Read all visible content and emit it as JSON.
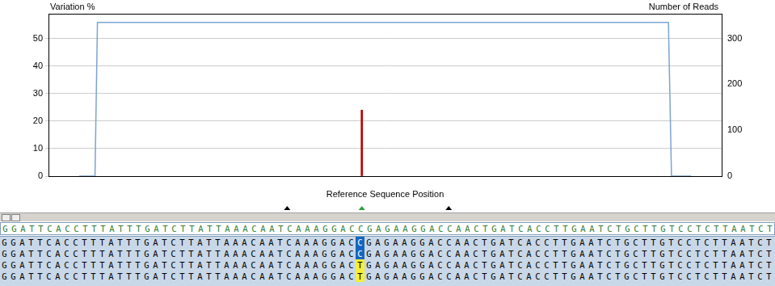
{
  "chart_data": {
    "type": "line",
    "y_label": "Variation %",
    "y2_label": "Number of Reads",
    "x_label": "Reference Sequence Position",
    "xlim": [
      0,
      100
    ],
    "ylim": [
      0,
      59
    ],
    "yticks": [
      0,
      10,
      20,
      30,
      40,
      50
    ],
    "y2lim": [
      0,
      354
    ],
    "y2ticks": [
      0,
      100,
      200,
      300
    ],
    "grid": true,
    "tick_labels": "y",
    "series": [
      {
        "type": "line",
        "color": "#7ba4d4",
        "axis": "y2",
        "x": [
          0,
          2.6,
          3,
          96.3,
          96.8,
          100
        ],
        "values": [
          0,
          0,
          335,
          335,
          0,
          0
        ]
      },
      {
        "type": "bar",
        "color": "#c00000",
        "x": [
          46.2
        ],
        "values": [
          24
        ]
      }
    ],
    "position_markers": {
      "x": [
        34,
        46.2,
        60.4
      ],
      "colors": [
        "#000000",
        "#2e9e3e",
        "#000000"
      ]
    }
  },
  "alignment": {
    "reference": {
      "left": "GGATTCACCTTTATTTGATCTTATTAAACAATCAAAGGAC",
      "base": "C",
      "right": "GAGAAGGACCAACTGATCACCTTGAATCTGCTTGTCCTCTTAATCT"
    },
    "reads": [
      {
        "left": "GGATTCACCTTTATTTGATCTTATTAAACAATCAAAGGAC",
        "base": "C",
        "right": "GAGAAGGACCAACTGATCACCTTGAATCTGCTTGTCCTCTTAATCT",
        "color": "#1565c0"
      },
      {
        "left": "GGATTCACCTTTATTTGATCTTATTAAACAATCAAAGGAC",
        "base": "C",
        "right": "GAGAAGGACCAACTGATCACCTTGAATCTGCTTGTCCTCTTAATCT",
        "color": "#1565c0"
      },
      {
        "left": "GGATTCACCTTTATTTGATCTTATTAAACAATCAAAGGAC",
        "base": "T",
        "right": "GAGAAGGACCAACTGATCACCTTGAATCTGCTTGTCCTCTTAATCT",
        "color": "#f5ef3a"
      },
      {
        "left": "GGATTCACCTTTATTTGATCTTATTAAACAATCAAAGGAC",
        "base": "T",
        "right": "GAGAAGGACCAACTGATCACCTTGAATCTGCTTGTCCTCTTAATCT",
        "color": "#f5ef3a"
      }
    ]
  }
}
